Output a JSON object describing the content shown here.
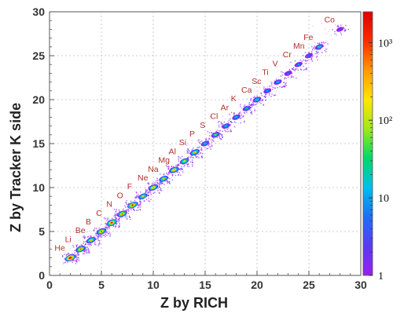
{
  "chart_data": {
    "type": "heatmap",
    "xlabel": "Z by RICH",
    "ylabel": "Z by Tracker K side",
    "xlim": [
      0,
      30
    ],
    "ylim": [
      0,
      30
    ],
    "x_ticks": [
      "0",
      "5",
      "10",
      "15",
      "20",
      "25",
      "30"
    ],
    "y_ticks": [
      "0",
      "5",
      "10",
      "15",
      "20",
      "25",
      "30"
    ],
    "grid": true,
    "log_z": true,
    "zlim": [
      1,
      2500
    ],
    "colorbar": {
      "ticks": [
        {
          "value": 1,
          "label": "1"
        },
        {
          "value": 10,
          "label": "10"
        },
        {
          "value": 100,
          "label": "10²"
        },
        {
          "value": 1000,
          "label": "10³"
        }
      ],
      "colors": [
        "#9a1ff0",
        "#5a3af5",
        "#1f6ef5",
        "#00c0e8",
        "#00d96a",
        "#9fe81a",
        "#ffe600",
        "#ff9a00",
        "#ff2a00",
        "#e00000"
      ]
    },
    "clusters": [
      {
        "label": "He",
        "z": 2,
        "peak": 2500
      },
      {
        "label": "Li",
        "z": 3,
        "peak": 700
      },
      {
        "label": "Be",
        "z": 4,
        "peak": 350
      },
      {
        "label": "B",
        "z": 5,
        "peak": 600
      },
      {
        "label": "C",
        "z": 6,
        "peak": 1500
      },
      {
        "label": "N",
        "z": 7,
        "peak": 600
      },
      {
        "label": "O",
        "z": 8,
        "peak": 1300
      },
      {
        "label": "F",
        "z": 9,
        "peak": 150
      },
      {
        "label": "Ne",
        "z": 10,
        "peak": 450
      },
      {
        "label": "Na",
        "z": 11,
        "peak": 150
      },
      {
        "label": "Mg",
        "z": 12,
        "peak": 450
      },
      {
        "label": "Al",
        "z": 13,
        "peak": 120
      },
      {
        "label": "Si",
        "z": 14,
        "peak": 350
      },
      {
        "label": "P",
        "z": 15,
        "peak": 25
      },
      {
        "label": "S",
        "z": 16,
        "peak": 60
      },
      {
        "label": "Cl",
        "z": 17,
        "peak": 25
      },
      {
        "label": "Ar",
        "z": 18,
        "peak": 30
      },
      {
        "label": "K",
        "z": 19,
        "peak": 25
      },
      {
        "label": "Ca",
        "z": 20,
        "peak": 40
      },
      {
        "label": "Sc",
        "z": 21,
        "peak": 12
      },
      {
        "label": "Ti",
        "z": 22,
        "peak": 18
      },
      {
        "label": "V",
        "z": 23,
        "peak": 10
      },
      {
        "label": "Cr",
        "z": 24,
        "peak": 14
      },
      {
        "label": "Mn",
        "z": 25,
        "peak": 10
      },
      {
        "label": "Fe",
        "z": 26,
        "peak": 40
      },
      {
        "label": "Co",
        "z": 28,
        "peak": 4
      }
    ]
  }
}
